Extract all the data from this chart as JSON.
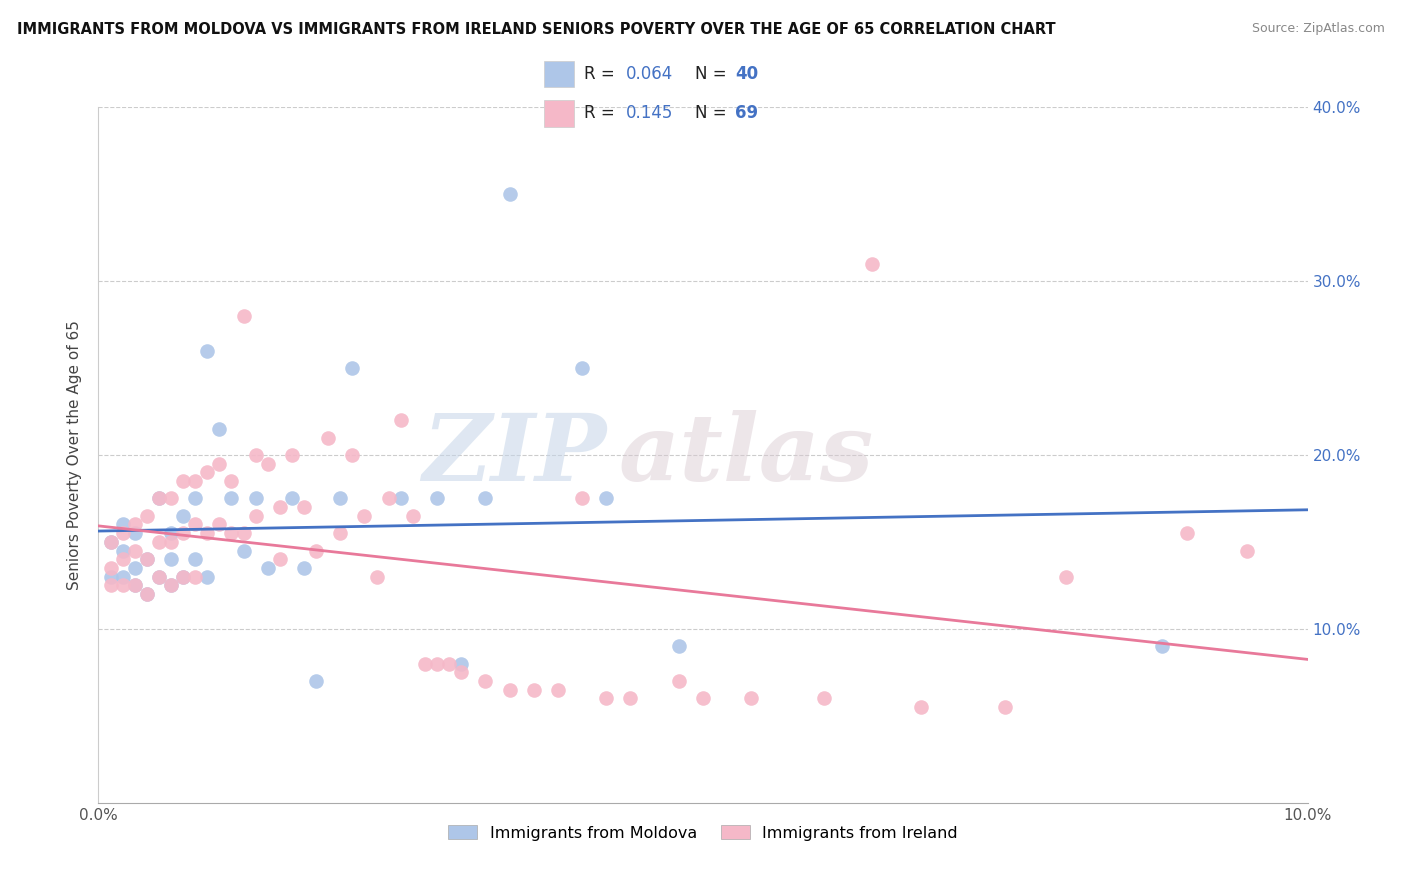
{
  "title": "IMMIGRANTS FROM MOLDOVA VS IMMIGRANTS FROM IRELAND SENIORS POVERTY OVER THE AGE OF 65 CORRELATION CHART",
  "source": "Source: ZipAtlas.com",
  "ylabel": "Seniors Poverty Over the Age of 65",
  "xlim": [
    0,
    0.1
  ],
  "ylim": [
    0,
    0.4
  ],
  "legend_r_moldova": "0.064",
  "legend_n_moldova": "40",
  "legend_r_ireland": "0.145",
  "legend_n_ireland": "69",
  "moldova_color": "#aec6e8",
  "ireland_color": "#f5b8c8",
  "moldova_line_color": "#4472c4",
  "ireland_line_color": "#e8799a",
  "watermark_zip": "ZIP",
  "watermark_atlas": "atlas",
  "moldova_scatter_x": [
    0.001,
    0.001,
    0.002,
    0.002,
    0.002,
    0.003,
    0.003,
    0.003,
    0.004,
    0.004,
    0.005,
    0.005,
    0.006,
    0.006,
    0.006,
    0.007,
    0.007,
    0.008,
    0.008,
    0.009,
    0.009,
    0.01,
    0.011,
    0.012,
    0.013,
    0.014,
    0.016,
    0.017,
    0.018,
    0.02,
    0.021,
    0.025,
    0.028,
    0.03,
    0.032,
    0.034,
    0.04,
    0.042,
    0.048,
    0.088
  ],
  "moldova_scatter_y": [
    0.15,
    0.13,
    0.16,
    0.145,
    0.13,
    0.155,
    0.135,
    0.125,
    0.14,
    0.12,
    0.175,
    0.13,
    0.155,
    0.14,
    0.125,
    0.165,
    0.13,
    0.175,
    0.14,
    0.26,
    0.13,
    0.215,
    0.175,
    0.145,
    0.175,
    0.135,
    0.175,
    0.135,
    0.07,
    0.175,
    0.25,
    0.175,
    0.175,
    0.08,
    0.175,
    0.35,
    0.25,
    0.175,
    0.09,
    0.09
  ],
  "ireland_scatter_x": [
    0.001,
    0.001,
    0.001,
    0.002,
    0.002,
    0.002,
    0.003,
    0.003,
    0.003,
    0.004,
    0.004,
    0.004,
    0.005,
    0.005,
    0.005,
    0.006,
    0.006,
    0.006,
    0.007,
    0.007,
    0.007,
    0.008,
    0.008,
    0.008,
    0.009,
    0.009,
    0.01,
    0.01,
    0.011,
    0.011,
    0.012,
    0.012,
    0.013,
    0.013,
    0.014,
    0.015,
    0.015,
    0.016,
    0.017,
    0.018,
    0.019,
    0.02,
    0.021,
    0.022,
    0.023,
    0.024,
    0.025,
    0.026,
    0.027,
    0.028,
    0.029,
    0.03,
    0.032,
    0.034,
    0.036,
    0.038,
    0.04,
    0.042,
    0.044,
    0.048,
    0.05,
    0.054,
    0.06,
    0.064,
    0.068,
    0.075,
    0.08,
    0.09,
    0.095
  ],
  "ireland_scatter_y": [
    0.15,
    0.135,
    0.125,
    0.155,
    0.14,
    0.125,
    0.16,
    0.145,
    0.125,
    0.165,
    0.14,
    0.12,
    0.175,
    0.15,
    0.13,
    0.175,
    0.15,
    0.125,
    0.185,
    0.155,
    0.13,
    0.185,
    0.16,
    0.13,
    0.19,
    0.155,
    0.195,
    0.16,
    0.185,
    0.155,
    0.28,
    0.155,
    0.2,
    0.165,
    0.195,
    0.17,
    0.14,
    0.2,
    0.17,
    0.145,
    0.21,
    0.155,
    0.2,
    0.165,
    0.13,
    0.175,
    0.22,
    0.165,
    0.08,
    0.08,
    0.08,
    0.075,
    0.07,
    0.065,
    0.065,
    0.065,
    0.175,
    0.06,
    0.06,
    0.07,
    0.06,
    0.06,
    0.06,
    0.31,
    0.055,
    0.055,
    0.13,
    0.155,
    0.145
  ]
}
